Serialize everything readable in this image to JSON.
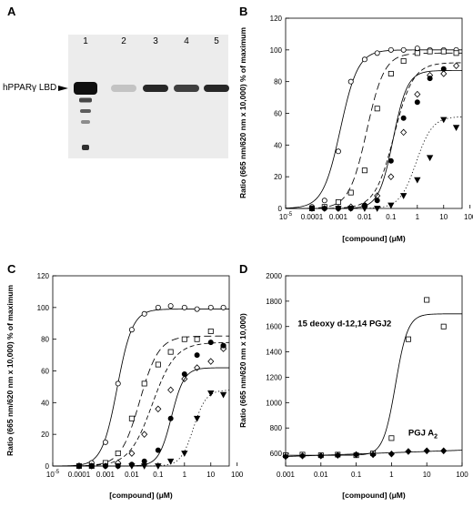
{
  "panel_labels": [
    "A",
    "B",
    "C",
    "D"
  ],
  "gel": {
    "band_label": "hPPARγ LBD",
    "lanes": [
      "1",
      "2",
      "3",
      "4",
      "5"
    ],
    "band_intensity": [
      1.0,
      0.25,
      0.9,
      0.8,
      0.9
    ]
  },
  "chart_data": [
    {
      "id": "B",
      "type": "scatter",
      "xscale": "log",
      "xlabel": "[compound] (μM)",
      "ylabel": "Ratio (665 nm/620 nm x 10,000) % of maximum",
      "xlim": [
        1e-05,
        50
      ],
      "ylim": [
        0,
        120
      ],
      "xticks": [
        "10^-5",
        "0.0001",
        "0.001",
        "0.01",
        "0.1",
        "1",
        "10",
        "100"
      ],
      "yticks": [
        "0",
        "20",
        "40",
        "60",
        "80",
        "100",
        "120"
      ],
      "series": [
        {
          "marker": "circle-open",
          "curve": {
            "bottom": 0,
            "top": 100,
            "ec50": 0.0012,
            "hill": 1.3,
            "dash": "solid"
          },
          "x": [
            0.0001,
            0.0003,
            0.001,
            0.003,
            0.01,
            0.03,
            0.1,
            0.3,
            1,
            3,
            10,
            30
          ],
          "y": [
            1,
            5,
            36,
            80,
            94,
            98,
            100,
            100,
            101,
            100,
            100,
            100
          ]
        },
        {
          "marker": "square-open",
          "curve": {
            "bottom": 0,
            "top": 98,
            "ec50": 0.012,
            "hill": 1.3,
            "dash": "long"
          },
          "x": [
            0.0001,
            0.0003,
            0.001,
            0.003,
            0.01,
            0.03,
            0.1,
            0.3,
            1,
            3,
            10,
            30
          ],
          "y": [
            0,
            1,
            4,
            10,
            24,
            63,
            85,
            93,
            98,
            99,
            99,
            98
          ]
        },
        {
          "marker": "diamond-open",
          "curve": {
            "bottom": 0,
            "top": 92,
            "ec50": 0.13,
            "hill": 1.2,
            "dash": "medium"
          },
          "x": [
            0.0001,
            0.0003,
            0.001,
            0.003,
            0.01,
            0.03,
            0.1,
            0.3,
            1,
            3,
            10,
            30
          ],
          "y": [
            0,
            0,
            0,
            1,
            2,
            8,
            20,
            48,
            72,
            84,
            85,
            90
          ]
        },
        {
          "marker": "circle-filled",
          "curve": {
            "bottom": 0,
            "top": 87,
            "ec50": 0.12,
            "hill": 1.6,
            "dash": "solid"
          },
          "x": [
            0.0001,
            0.0003,
            0.001,
            0.003,
            0.01,
            0.03,
            0.1,
            0.3,
            1,
            3,
            10
          ],
          "y": [
            0,
            0,
            0,
            0,
            2,
            5,
            30,
            57,
            67,
            82,
            88
          ]
        },
        {
          "marker": "triangle-down-filled",
          "curve": {
            "bottom": 0,
            "top": 58,
            "ec50": 0.9,
            "hill": 1.4,
            "dash": "dotted"
          },
          "x": [
            0.001,
            0.003,
            0.01,
            0.03,
            0.1,
            0.3,
            1,
            3,
            10,
            30
          ],
          "y": [
            0,
            0,
            0,
            0,
            2,
            8,
            18,
            32,
            56,
            51
          ]
        }
      ]
    },
    {
      "id": "C",
      "type": "scatter",
      "xscale": "log",
      "xlabel": "[compound] (μM)",
      "ylabel": "Ratio (665 nm/620 nm x 10,000) % of maximum",
      "xlim": [
        1e-05,
        50
      ],
      "ylim": [
        0,
        120
      ],
      "xticks": [
        "10^-5",
        "0.0001",
        "0.001",
        "0.01",
        "0.1",
        "1",
        "10",
        "100"
      ],
      "yticks": [
        "0",
        "20",
        "40",
        "60",
        "80",
        "100",
        "120"
      ],
      "series": [
        {
          "marker": "circle-open",
          "curve": {
            "bottom": 0,
            "top": 99,
            "ec50": 0.0028,
            "hill": 1.5,
            "dash": "solid"
          },
          "x": [
            0.0001,
            0.0003,
            0.001,
            0.003,
            0.01,
            0.03,
            0.1,
            0.3,
            1,
            3,
            10,
            30
          ],
          "y": [
            0,
            2,
            15,
            52,
            86,
            96,
            100,
            101,
            100,
            99,
            100,
            100
          ]
        },
        {
          "marker": "square-open",
          "curve": {
            "bottom": 0,
            "top": 82,
            "ec50": 0.02,
            "hill": 1.2,
            "dash": "long"
          },
          "x": [
            0.0001,
            0.0003,
            0.001,
            0.003,
            0.01,
            0.03,
            0.1,
            0.3,
            1,
            3,
            10,
            30
          ],
          "y": [
            0,
            0,
            2,
            8,
            30,
            52,
            64,
            72,
            80,
            80,
            85,
            75
          ]
        },
        {
          "marker": "diamond-open",
          "curve": {
            "bottom": 0,
            "top": 78,
            "ec50": 0.06,
            "hill": 1.0,
            "dash": "medium"
          },
          "x": [
            0.0001,
            0.0003,
            0.001,
            0.003,
            0.01,
            0.03,
            0.1,
            0.3,
            1,
            3,
            10,
            30
          ],
          "y": [
            0,
            0,
            0,
            2,
            8,
            20,
            36,
            48,
            55,
            62,
            66,
            74
          ]
        },
        {
          "marker": "circle-filled",
          "curve": {
            "bottom": 0,
            "top": 62,
            "ec50": 0.32,
            "hill": 1.8,
            "dash": "solid"
          },
          "x": [
            0.0001,
            0.0003,
            0.001,
            0.003,
            0.01,
            0.03,
            0.1,
            0.3,
            1,
            3,
            10,
            30
          ],
          "y": [
            0,
            0,
            0,
            0,
            1,
            3,
            10,
            30,
            58,
            70,
            78,
            76
          ]
        },
        {
          "marker": "triangle-down-filled",
          "curve": {
            "bottom": 0,
            "top": 48,
            "ec50": 2.2,
            "hill": 1.8,
            "dash": "dotted"
          },
          "x": [
            0.003,
            0.01,
            0.03,
            0.1,
            0.3,
            1,
            3,
            10,
            30
          ],
          "y": [
            0,
            0,
            0,
            0,
            3,
            8,
            30,
            46,
            45
          ]
        }
      ]
    },
    {
      "id": "D",
      "type": "scatter",
      "xscale": "log",
      "xlabel": "[compound] (μM)",
      "ylabel": "Ratio (665 nm/620 nm x 10,000)",
      "xlim": [
        0.001,
        100
      ],
      "ylim": [
        0,
        2000
      ],
      "yaxis_min": 500,
      "xticks": [
        "0.001",
        "0.01",
        "0.1",
        "1",
        "10",
        "100"
      ],
      "yticks": [
        "600",
        "800",
        "1000",
        "1200",
        "1400",
        "1600",
        "1800",
        "2000"
      ],
      "annotations": [
        {
          "text": "15 deoxy d-12,14 PGJ2",
          "x": 0.0022,
          "y": 1600
        },
        {
          "text": "PGJ A",
          "sub": "2",
          "x": 3,
          "y": 740
        }
      ],
      "series": [
        {
          "name": "15 deoxy d-12,14 PGJ2",
          "marker": "square-open",
          "curve": {
            "bottom": 585,
            "top": 1700,
            "ec50": 1.3,
            "hill": 2.5,
            "dash": "solid"
          },
          "x": [
            0.001,
            0.003,
            0.01,
            0.03,
            0.1,
            0.3,
            1,
            3,
            10,
            30
          ],
          "y": [
            585,
            590,
            585,
            590,
            585,
            600,
            720,
            1500,
            1810,
            1600
          ]
        },
        {
          "name": "PGJ A2",
          "marker": "diamond-filled",
          "curve": {
            "type": "linear-log",
            "y0": 575,
            "y1": 625,
            "dash": "solid"
          },
          "x": [
            0.001,
            0.003,
            0.01,
            0.03,
            0.1,
            0.3,
            1,
            3,
            10,
            30
          ],
          "y": [
            575,
            580,
            580,
            585,
            590,
            590,
            595,
            615,
            620,
            620
          ]
        }
      ]
    }
  ]
}
